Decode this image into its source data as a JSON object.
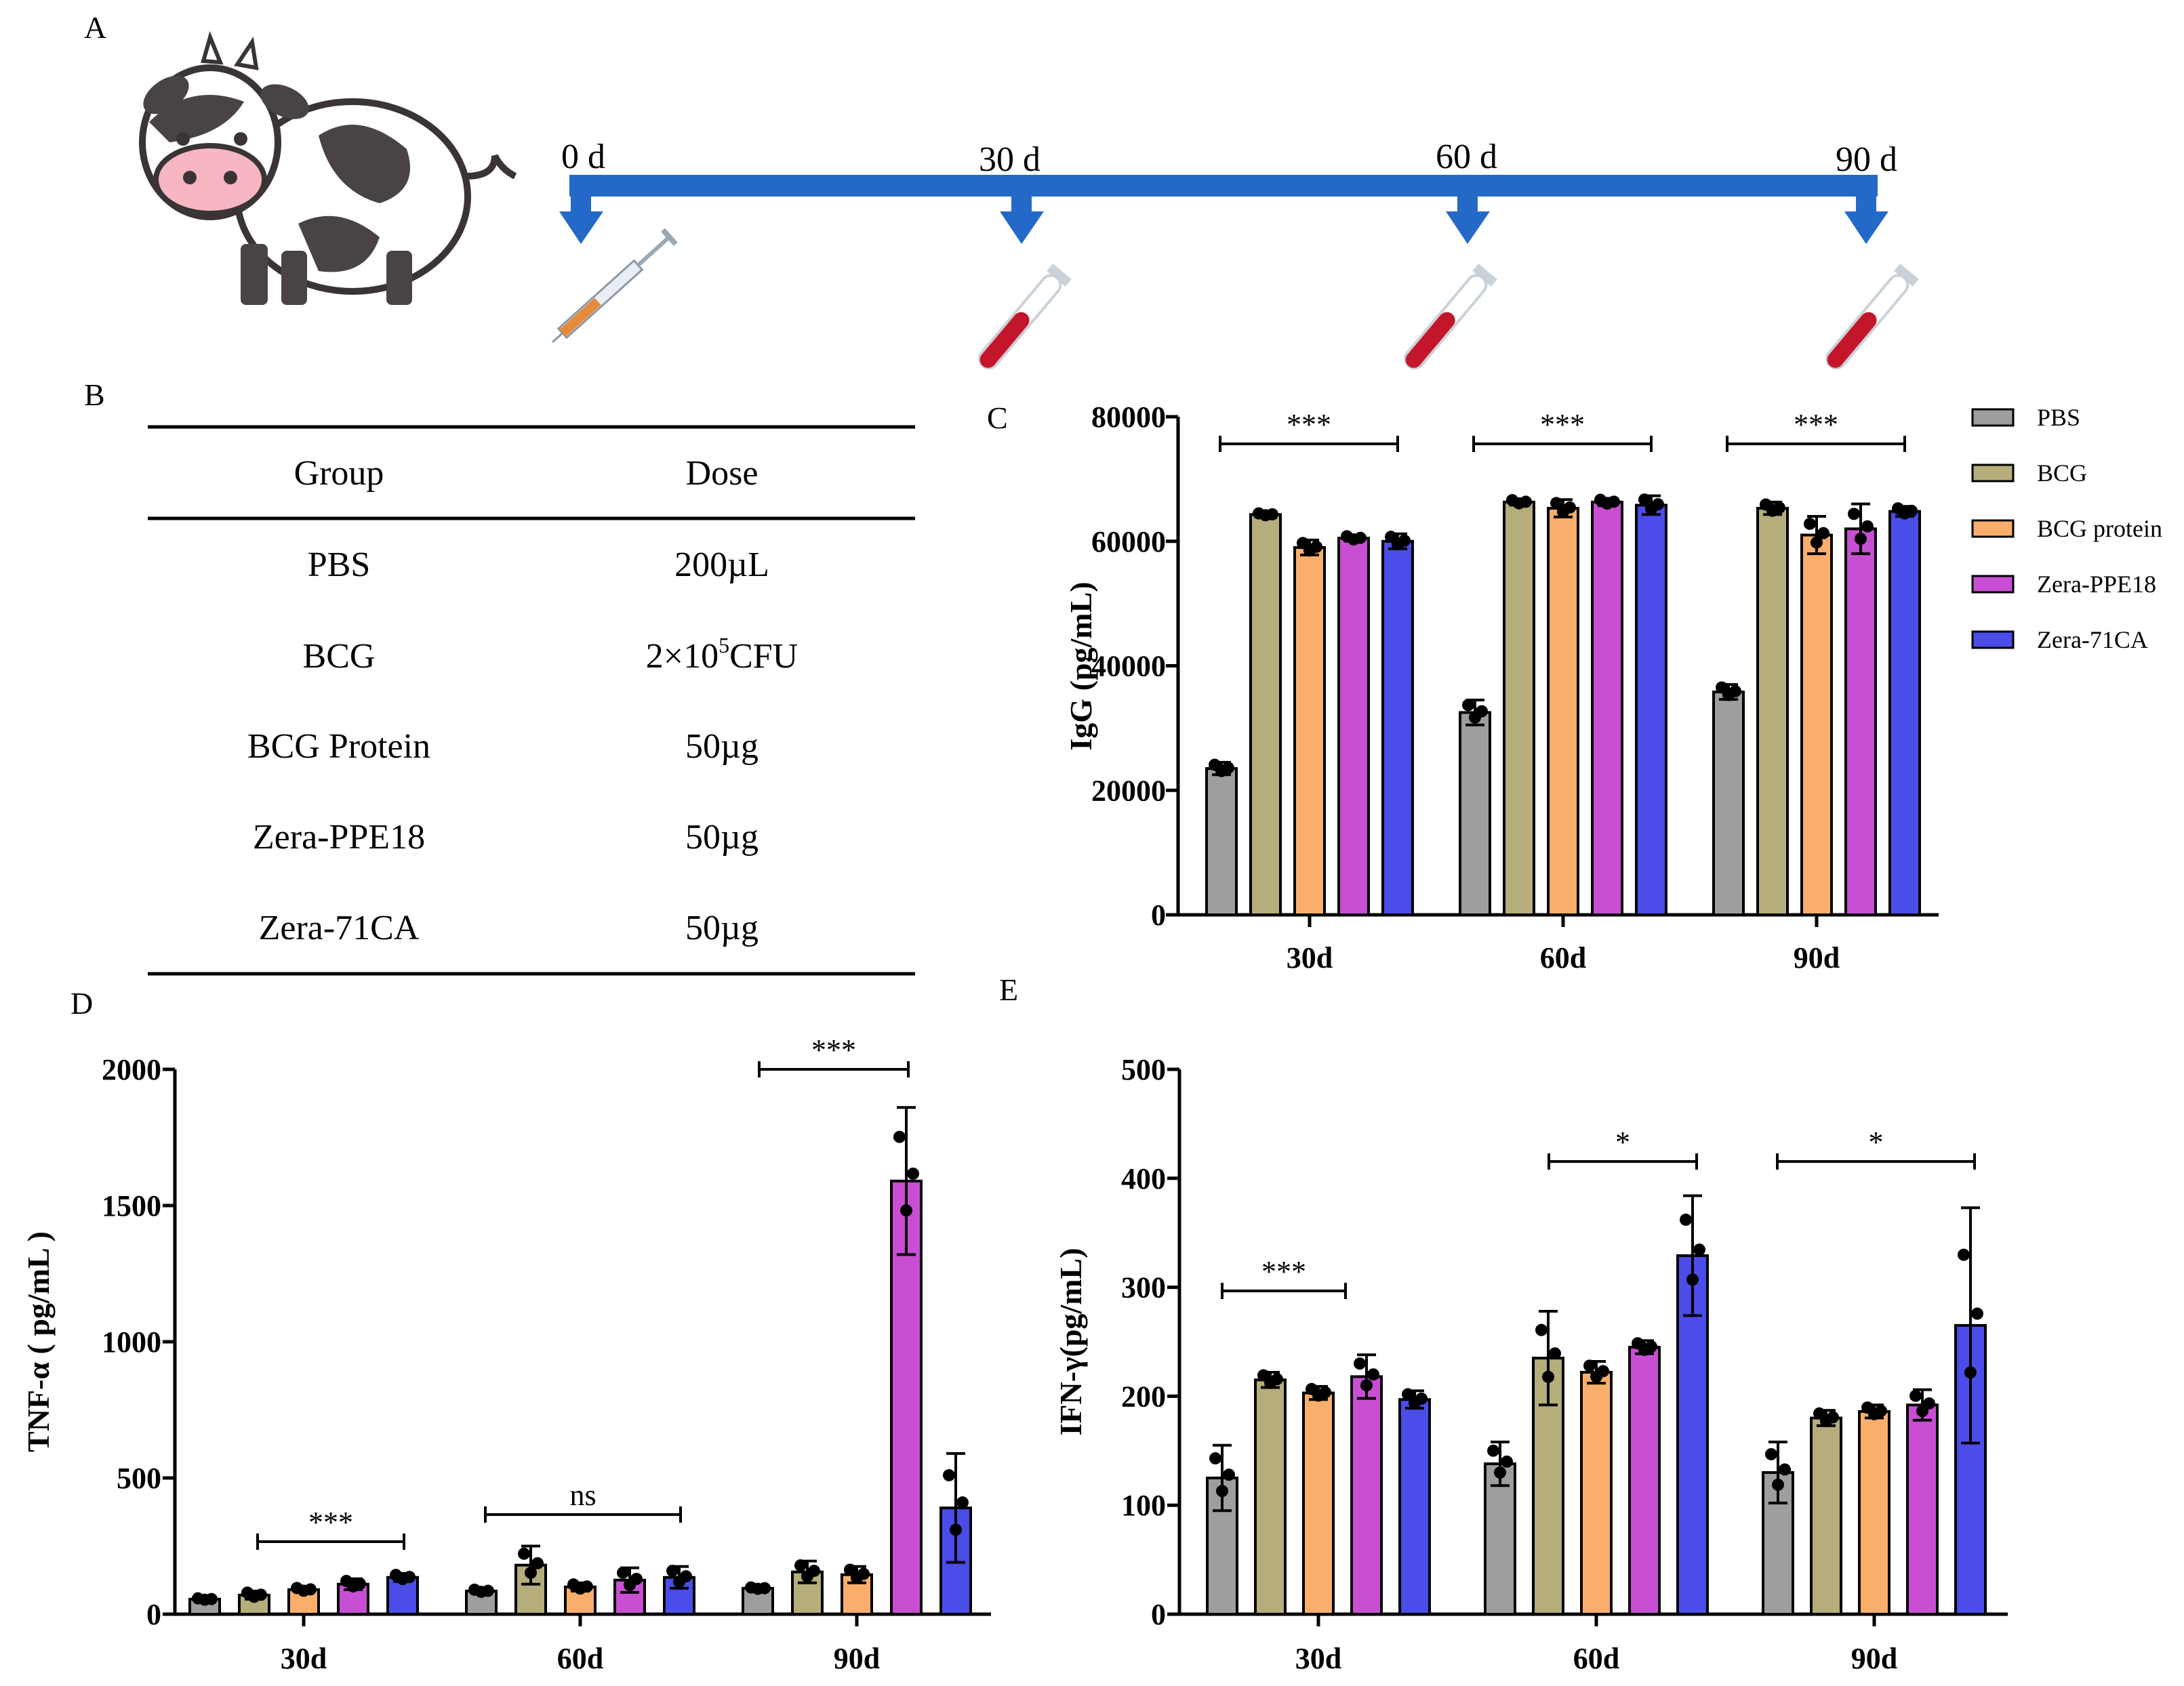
{
  "panels": {
    "A": "A",
    "B": "B",
    "C": "C",
    "D": "D",
    "E": "E"
  },
  "colors": {
    "PBS": "#9e9e9e",
    "BCG": "#b5ad7b",
    "BCG protein": "#f9ae6b",
    "Zera-PPE18": "#c84fd3",
    "Zera-71CA": "#4b4de8",
    "timeline": "#2469c8"
  },
  "timeline": {
    "labels": [
      "0 d",
      "30 d",
      "60 d",
      "90 d"
    ]
  },
  "table": {
    "headers": [
      "Group",
      "Dose"
    ],
    "rows": [
      {
        "group": "PBS",
        "dose": "200µL"
      },
      {
        "group": "BCG",
        "dose_pre": "2×10",
        "dose_sup": "5",
        "dose_post": "CFU"
      },
      {
        "group": "BCG Protein",
        "dose": "50µg"
      },
      {
        "group": "Zera-PPE18",
        "dose": "50µg"
      },
      {
        "group": "Zera-71CA",
        "dose": "50µg"
      }
    ]
  },
  "legend": [
    "PBS",
    "BCG",
    "BCG protein",
    "Zera-PPE18",
    "Zera-71CA"
  ],
  "chart_data": [
    {
      "id": "C",
      "type": "bar",
      "ylabel": "IgG (pg/mL)",
      "categories": [
        "30d",
        "60d",
        "90d"
      ],
      "ylim": [
        0,
        80000
      ],
      "yticks": [
        0,
        20000,
        40000,
        60000,
        80000
      ],
      "yticklabels": [
        "0",
        "20000",
        "40000",
        "60000",
        "80000"
      ],
      "series": [
        {
          "name": "PBS",
          "values": [
            23500,
            32500,
            35800
          ],
          "err": [
            1000,
            2000,
            1200
          ]
        },
        {
          "name": "BCG",
          "values": [
            64300,
            66300,
            65300
          ],
          "err": [
            300,
            500,
            1000
          ]
        },
        {
          "name": "BCG protein",
          "values": [
            59000,
            65300,
            61000
          ],
          "err": [
            1200,
            1400,
            3000
          ]
        },
        {
          "name": "Zera-PPE18",
          "values": [
            60500,
            66300,
            62000
          ],
          "err": [
            500,
            600,
            4000
          ]
        },
        {
          "name": "Zera-71CA",
          "values": [
            60000,
            65800,
            64800
          ],
          "err": [
            1200,
            1500,
            800
          ]
        }
      ],
      "significance": [
        {
          "text": "***"
        },
        {
          "text": "***"
        },
        {
          "text": "***"
        }
      ]
    },
    {
      "id": "D",
      "type": "bar",
      "ylabel": "TNF-α ( pg/mL )",
      "categories": [
        "30d",
        "60d",
        "90d"
      ],
      "ylim": [
        0,
        2000
      ],
      "yticks": [
        0,
        500,
        1000,
        1500,
        2000
      ],
      "yticklabels": [
        "0",
        "500",
        "1000",
        "1500",
        "2000"
      ],
      "series": [
        {
          "name": "PBS",
          "values": [
            55,
            85,
            95
          ],
          "err": [
            5,
            8,
            5
          ]
        },
        {
          "name": "BCG",
          "values": [
            70,
            180,
            155
          ],
          "err": [
            15,
            70,
            40
          ]
        },
        {
          "name": "BCG protein",
          "values": [
            90,
            100,
            145
          ],
          "err": [
            10,
            15,
            30
          ]
        },
        {
          "name": "Zera-PPE18",
          "values": [
            110,
            125,
            1590
          ],
          "err": [
            20,
            45,
            270
          ]
        },
        {
          "name": "Zera-71CA",
          "values": [
            135,
            135,
            390
          ],
          "err": [
            15,
            40,
            200
          ]
        }
      ],
      "significance": [
        {
          "text": "***"
        },
        {
          "text": "ns"
        },
        {
          "text": "***"
        }
      ]
    },
    {
      "id": "E",
      "type": "bar",
      "ylabel": "IFN-γ(pg/mL)",
      "categories": [
        "30d",
        "60d",
        "90d"
      ],
      "ylim": [
        0,
        500
      ],
      "yticks": [
        0,
        100,
        200,
        300,
        400,
        500
      ],
      "yticklabels": [
        "0",
        "100",
        "200",
        "300",
        "400",
        "500"
      ],
      "series": [
        {
          "name": "PBS",
          "values": [
            125,
            138,
            130
          ],
          "err": [
            30,
            20,
            28
          ]
        },
        {
          "name": "BCG",
          "values": [
            215,
            235,
            180
          ],
          "err": [
            7,
            43,
            7
          ]
        },
        {
          "name": "BCG protein",
          "values": [
            203,
            222,
            186
          ],
          "err": [
            6,
            10,
            6
          ]
        },
        {
          "name": "Zera-PPE18",
          "values": [
            218,
            245,
            192
          ],
          "err": [
            20,
            6,
            14
          ]
        },
        {
          "name": "Zera-71CA",
          "values": [
            197,
            329,
            265
          ],
          "err": [
            8,
            55,
            108
          ]
        }
      ],
      "significance": [
        {
          "text": "***"
        },
        {
          "text": "*"
        },
        {
          "text": "*"
        }
      ]
    }
  ]
}
